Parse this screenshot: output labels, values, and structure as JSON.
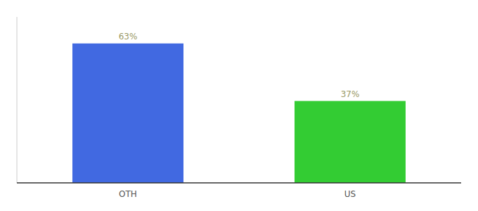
{
  "chart_data": {
    "type": "bar",
    "categories": [
      "OTH",
      "US"
    ],
    "values": [
      63,
      37
    ],
    "value_labels": [
      "63%",
      "37%"
    ],
    "data_labels": true,
    "colors": [
      "#4169e1",
      "#33cc33"
    ],
    "ylim": [
      0,
      75
    ],
    "tick_labels": "x",
    "grid": false
  }
}
